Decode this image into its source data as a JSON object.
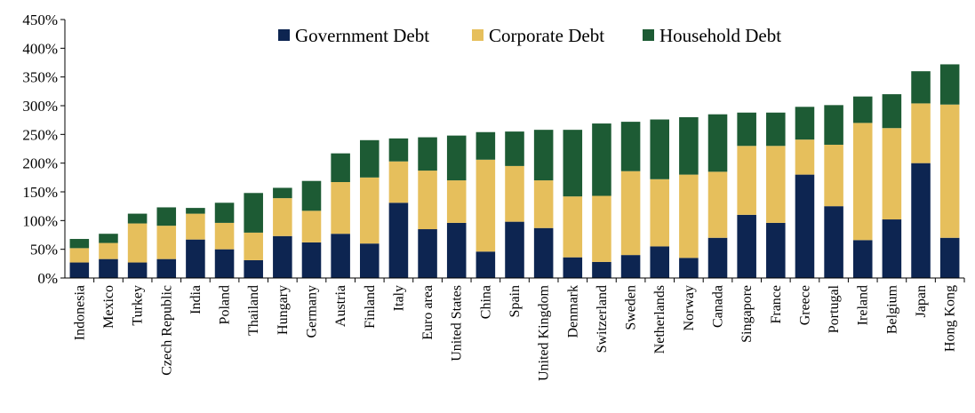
{
  "chart_data": {
    "type": "bar",
    "stacked": true,
    "title": "",
    "xlabel": "",
    "ylabel": "",
    "ylim": [
      0,
      450
    ],
    "y_ticks": [
      "0%",
      "50%",
      "100%",
      "150%",
      "200%",
      "250%",
      "300%",
      "350%",
      "400%",
      "450%"
    ],
    "grid": false,
    "legend_position": "top",
    "categories": [
      "Indonesia",
      "Mexico",
      "Turkey",
      "Czech Republic",
      "India",
      "Poland",
      "Thailand",
      "Hungary",
      "Germany",
      "Austria",
      "Finland",
      "Italy",
      "Euro area",
      "United States",
      "China",
      "Spain",
      "United Kingdom",
      "Denmark",
      "Switzerland",
      "Sweden",
      "Netherlands",
      "Norway",
      "Canada",
      "Singapore",
      "France",
      "Greece",
      "Portugal",
      "Ireland",
      "Belgium",
      "Japan",
      "Hong Kong"
    ],
    "series": [
      {
        "name": "Government Debt",
        "color": "#0d2551",
        "values": [
          27,
          33,
          27,
          33,
          67,
          50,
          31,
          73,
          62,
          77,
          60,
          131,
          85,
          96,
          46,
          98,
          87,
          36,
          28,
          40,
          55,
          35,
          70,
          110,
          96,
          180,
          125,
          66,
          102,
          200,
          70
        ]
      },
      {
        "name": "Corporate Debt",
        "color": "#e6bf5c",
        "values": [
          25,
          28,
          68,
          58,
          45,
          46,
          48,
          66,
          55,
          90,
          115,
          72,
          102,
          74,
          160,
          97,
          83,
          106,
          115,
          146,
          117,
          145,
          115,
          120,
          134,
          61,
          107,
          204,
          159,
          104,
          232
        ]
      },
      {
        "name": "Household Debt",
        "color": "#1d5b34",
        "values": [
          16,
          16,
          17,
          32,
          10,
          35,
          69,
          18,
          52,
          50,
          65,
          40,
          58,
          78,
          48,
          60,
          88,
          116,
          126,
          86,
          104,
          100,
          100,
          58,
          58,
          57,
          69,
          46,
          59,
          56,
          70
        ]
      }
    ]
  }
}
